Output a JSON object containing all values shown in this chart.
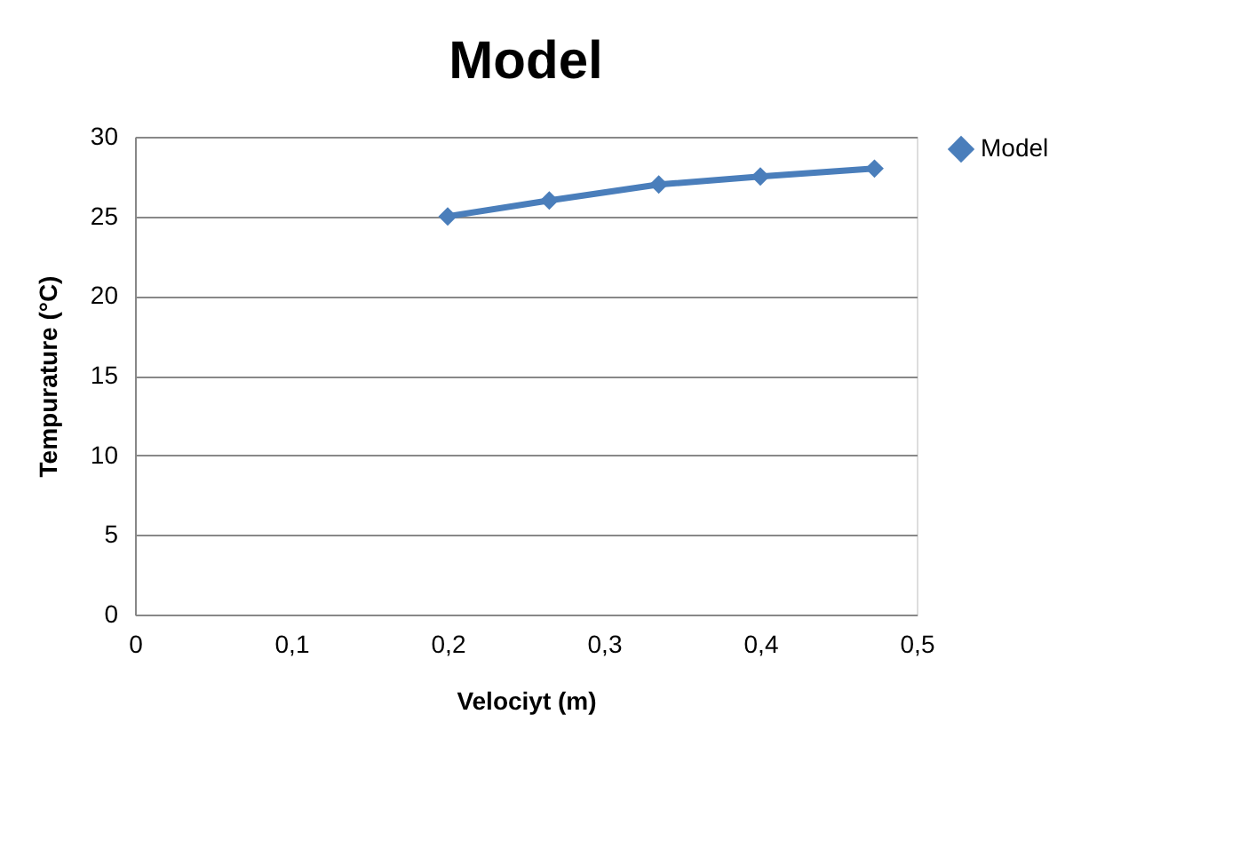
{
  "chart_data": {
    "type": "line",
    "title": "Model",
    "xlabel": "Velociyt (m)",
    "ylabel": "Tempurature (°C)",
    "x": [
      0.2,
      0.265,
      0.335,
      0.4,
      0.473
    ],
    "series": [
      {
        "name": "Model",
        "color": "#4a7ebb",
        "values": [
          25,
          26,
          27,
          27.5,
          28
        ]
      }
    ],
    "xlim": [
      0,
      0.5
    ],
    "xticks": [
      0,
      {
        "value": 0.1,
        "label": "0,1"
      },
      {
        "value": 0.2,
        "label": "0,2"
      },
      {
        "value": 0.3,
        "label": "0,3"
      },
      {
        "value": 0.4,
        "label": "0,4"
      },
      {
        "value": 0.5,
        "label": "0,5"
      }
    ],
    "ylim": [
      0,
      30
    ],
    "yticks": [
      0,
      5,
      10,
      15,
      20,
      25,
      30
    ],
    "grid": "y",
    "legend": "right",
    "marker": "diamond",
    "line_style": "solid"
  }
}
